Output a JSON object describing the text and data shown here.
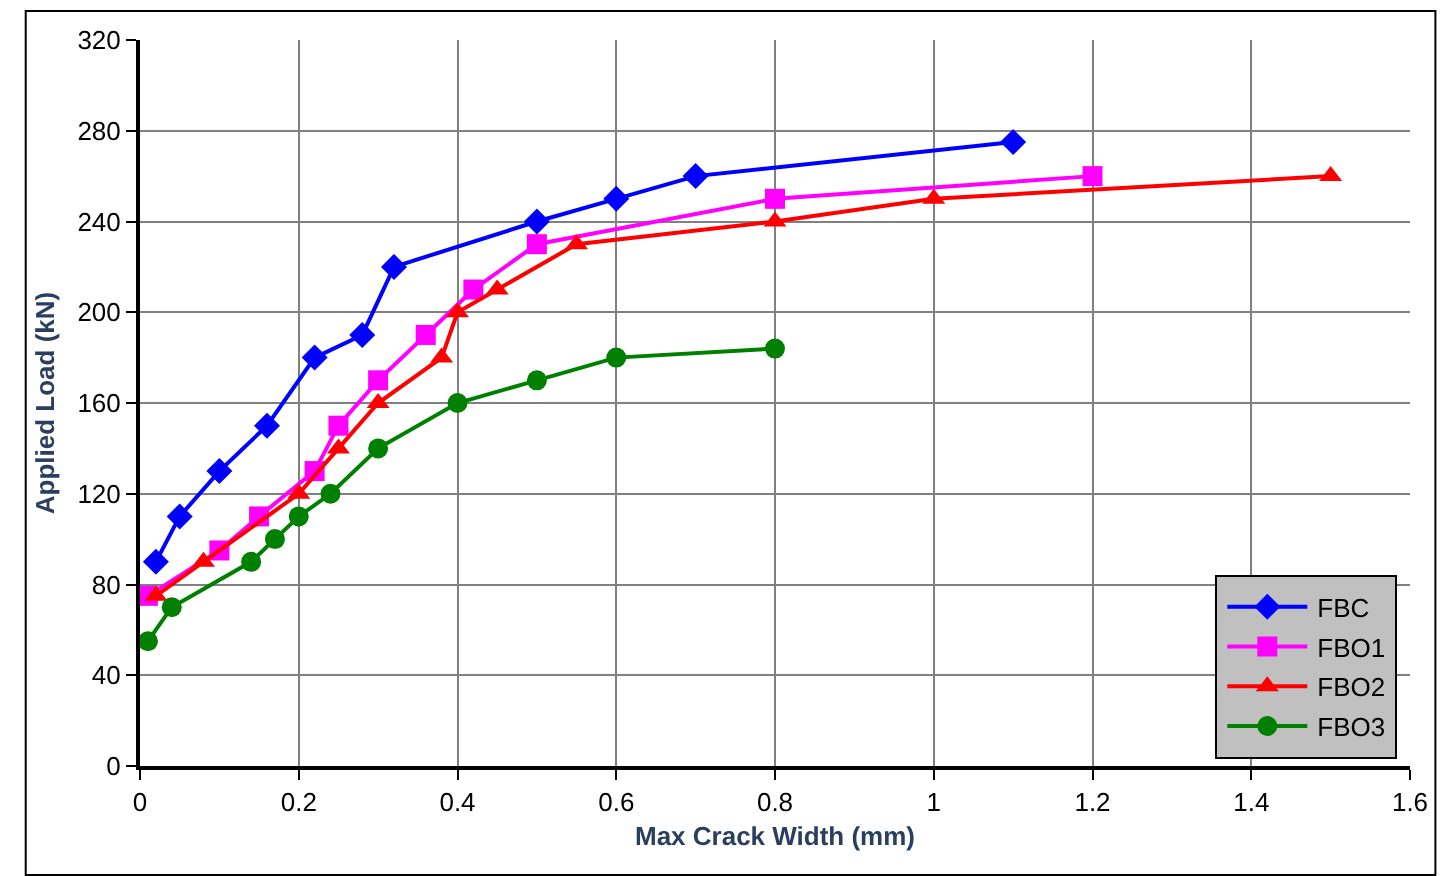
{
  "chart_data": {
    "type": "line",
    "xlabel": "Max Crack Width (mm)",
    "ylabel": "Applied Load (kN)",
    "xlim": [
      0,
      1.6
    ],
    "xticks": [
      0,
      0.2,
      0.4,
      0.6,
      0.8,
      1,
      1.2,
      1.4,
      1.6
    ],
    "ylim": [
      0,
      320
    ],
    "yticks": [
      0,
      40,
      80,
      120,
      160,
      200,
      240,
      280,
      320
    ],
    "grid": true,
    "legend": "bottom right",
    "line_style": "solid",
    "series": [
      {
        "name": "FBC",
        "color": "#0000ff",
        "marker": "diamond",
        "x": [
          0.02,
          0.05,
          0.1,
          0.16,
          0.22,
          0.28,
          0.32,
          0.5,
          0.6,
          0.7,
          1.1
        ],
        "values": [
          90,
          110,
          130,
          150,
          180,
          190,
          220,
          240,
          250,
          260,
          275
        ]
      },
      {
        "name": "FBO1",
        "color": "#ff00ff",
        "marker": "square",
        "x": [
          0.01,
          0.1,
          0.15,
          0.22,
          0.25,
          0.3,
          0.36,
          0.42,
          0.5,
          0.8,
          1.2
        ],
        "values": [
          75,
          95,
          110,
          130,
          150,
          170,
          190,
          210,
          230,
          250,
          260
        ]
      },
      {
        "name": "FBO2",
        "color": "#ff0000",
        "marker": "triangle",
        "x": [
          0.02,
          0.08,
          0.2,
          0.25,
          0.3,
          0.38,
          0.4,
          0.45,
          0.55,
          0.8,
          1.0,
          1.5
        ],
        "values": [
          75,
          90,
          120,
          140,
          160,
          180,
          200,
          210,
          230,
          240,
          250,
          260
        ]
      },
      {
        "name": "FBO3",
        "color": "#008000",
        "marker": "circle",
        "x": [
          0.01,
          0.04,
          0.14,
          0.17,
          0.2,
          0.24,
          0.3,
          0.4,
          0.5,
          0.6,
          0.8
        ],
        "values": [
          55,
          70,
          90,
          100,
          110,
          120,
          140,
          160,
          170,
          180,
          184
        ]
      }
    ]
  }
}
